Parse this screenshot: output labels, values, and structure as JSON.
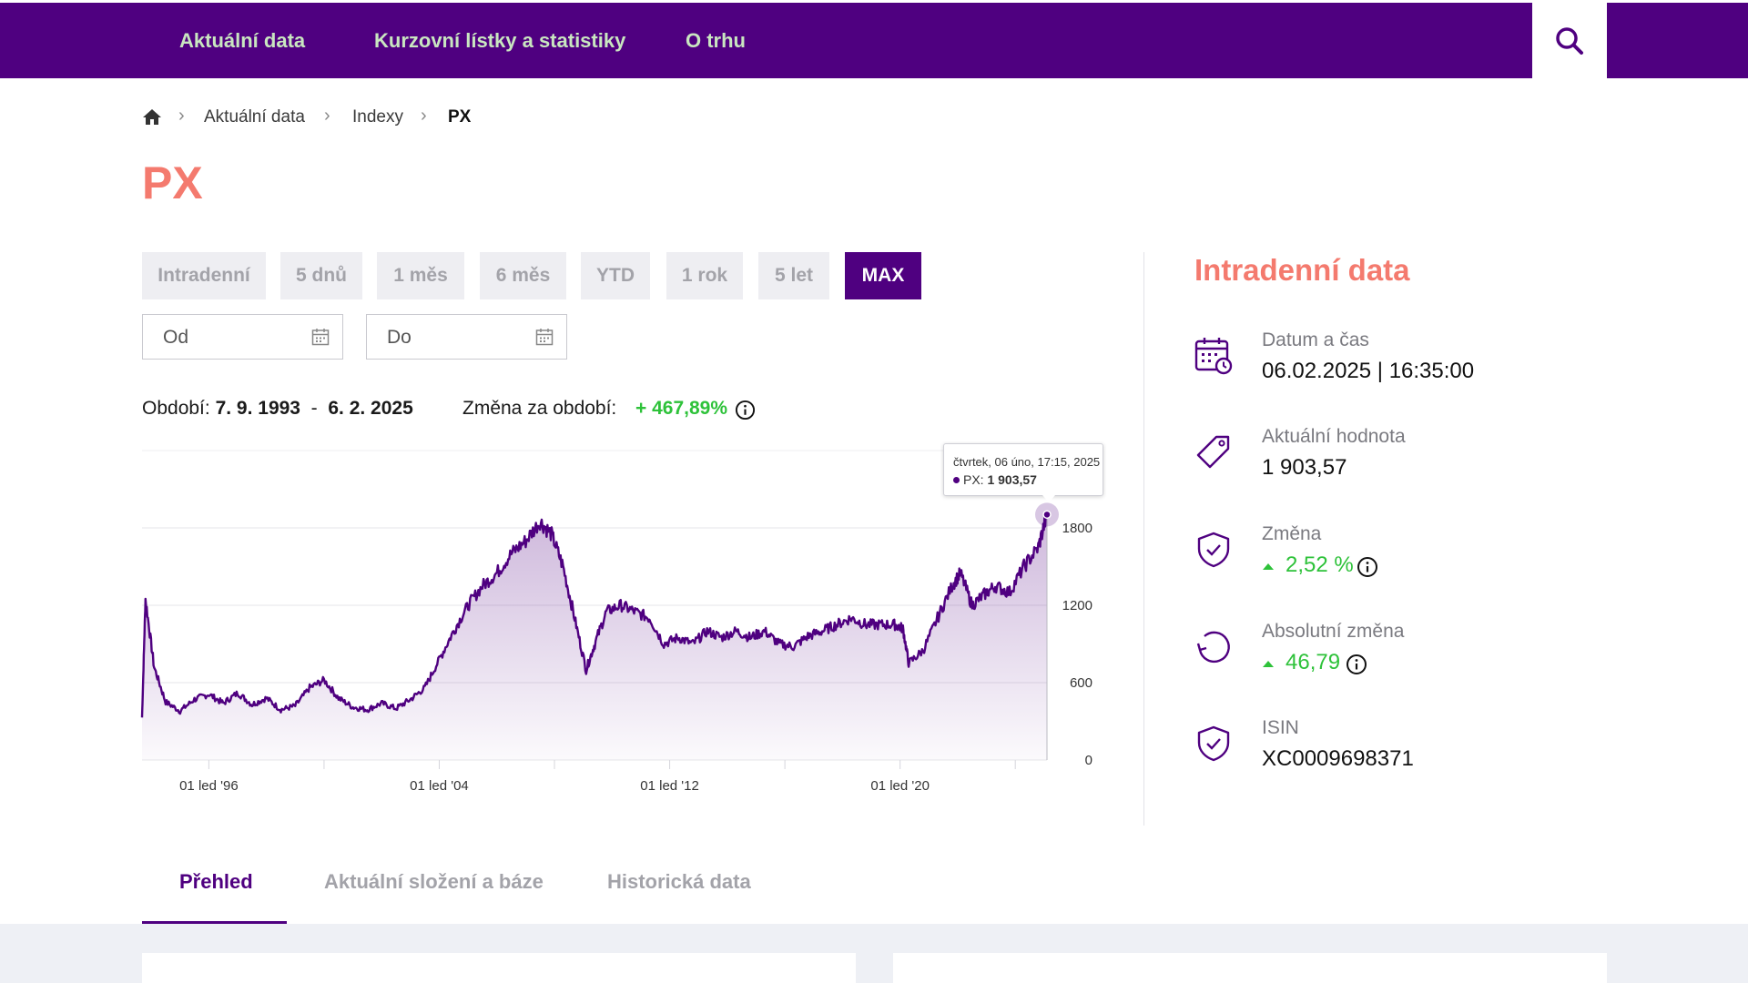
{
  "nav": {
    "items": [
      {
        "label": "Aktuální data"
      },
      {
        "label": "Kurzovní lístky a statistiky"
      },
      {
        "label": "O trhu"
      }
    ],
    "search_icon": "search-icon"
  },
  "breadcrumb": {
    "home_icon": "home-icon",
    "items": [
      "Aktuální data",
      "Indexy",
      "PX"
    ]
  },
  "title": "PX",
  "periods": {
    "buttons": [
      "Intradenní",
      "5 dnů",
      "1 měs",
      "6 měs",
      "YTD",
      "1 rok",
      "5 let",
      "MAX"
    ],
    "active": "MAX"
  },
  "date_inputs": {
    "from_label": "Od",
    "to_label": "Do"
  },
  "summary": {
    "period_label": "Období:",
    "period_from": "7. 9. 1993",
    "period_dash": "-",
    "period_to": "6. 2. 2025",
    "change_label": "Změna za období:",
    "change_value": "+ 467,89%"
  },
  "tooltip": {
    "date": "čtvrtek, 06 úno, 17:15, 2025",
    "series": "PX:",
    "value": "1 903,57"
  },
  "chart_data": {
    "type": "area",
    "x_ticks": [
      "01 led '96",
      "01 led '04",
      "01 led '12",
      "01 led '20"
    ],
    "y_ticks": [
      "0",
      "600",
      "1200",
      "1800"
    ],
    "ylim": [
      0,
      2400
    ],
    "xlim": [
      1993.68,
      2025.1
    ],
    "series": [
      {
        "x": [
          1993.68,
          1993.8,
          1994.1,
          1994.5,
          1995.0,
          1995.5,
          1996.0,
          1996.5,
          1997.0,
          1997.5,
          1998.0,
          1998.5,
          1999.0,
          1999.5,
          2000.0,
          2000.5,
          2001.0,
          2001.5,
          2002.0,
          2002.5,
          2003.0,
          2003.5,
          2004.0,
          2004.5,
          2005.0,
          2005.5,
          2006.0,
          2006.5,
          2007.0,
          2007.5,
          2007.9,
          2008.3,
          2008.7,
          2009.1,
          2009.4,
          2009.8,
          2010.3,
          2010.8,
          2011.3,
          2011.8,
          2012.3,
          2012.8,
          2013.3,
          2013.8,
          2014.3,
          2014.8,
          2015.3,
          2015.8,
          2016.3,
          2016.8,
          2017.3,
          2017.8,
          2018.3,
          2018.8,
          2019.3,
          2019.8,
          2020.1,
          2020.3,
          2020.8,
          2021.3,
          2021.8,
          2022.1,
          2022.5,
          2022.9,
          2023.3,
          2023.8,
          2024.3,
          2024.8,
          2025.1
        ],
        "y": [
          330,
          1250,
          720,
          450,
          380,
          470,
          510,
          440,
          520,
          430,
          480,
          390,
          420,
          560,
          620,
          480,
          410,
          390,
          440,
          400,
          470,
          560,
          780,
          1000,
          1200,
          1350,
          1450,
          1600,
          1700,
          1850,
          1750,
          1500,
          1100,
          700,
          900,
          1150,
          1200,
          1150,
          1100,
          900,
          950,
          900,
          1000,
          950,
          1000,
          950,
          1000,
          900,
          880,
          960,
          1000,
          1050,
          1100,
          1050,
          1050,
          1050,
          1020,
          750,
          850,
          1100,
          1350,
          1450,
          1200,
          1280,
          1350,
          1300,
          1500,
          1650,
          1904
        ]
      }
    ],
    "last_point": {
      "x": 2025.1,
      "y": 1903.57
    }
  },
  "panel": {
    "title": "Intradenní data",
    "stats": [
      {
        "icon": "calendar-clock-icon",
        "label": "Datum a čas",
        "value": "06.02.2025 | 16:35:00"
      },
      {
        "icon": "tag-icon",
        "label": "Aktuální hodnota",
        "value": "1 903,57"
      },
      {
        "icon": "shield-check-icon",
        "label": "Změna",
        "value": "2,52 %"
      },
      {
        "icon": "refresh-icon",
        "label": "Absolutní změna",
        "value": "46,79"
      },
      {
        "icon": "shield-check-icon",
        "label": "ISIN",
        "value": "XC0009698371"
      }
    ]
  },
  "tabs": [
    {
      "label": "Přehled"
    },
    {
      "label": "Aktuální složení a báze"
    },
    {
      "label": "Historická data"
    }
  ],
  "colors": {
    "brand": "#4f0080",
    "accent": "#f47a6e",
    "positive": "#2ec23a"
  }
}
